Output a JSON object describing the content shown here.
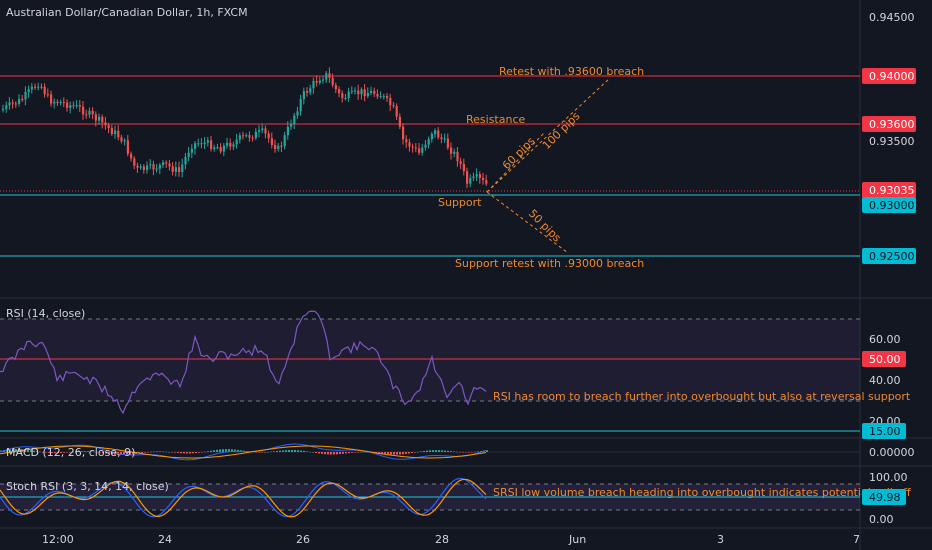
{
  "header": {
    "title": "Australian Dollar/Canadian Dollar, 1h, FXCM"
  },
  "colors": {
    "bg": "#131722",
    "up": "#26a69a",
    "down": "#ef5350",
    "resist": "#f23645",
    "support": "#22c5d6",
    "annotation": "#f0892f",
    "rsi": "#7e57c2",
    "stoch_k": "#2962ff",
    "stoch_d": "#ff9800"
  },
  "price_axis": {
    "ticks": [
      "0.94500",
      "0.93500"
    ],
    "tags": [
      {
        "label": "0.94000",
        "color": "#f23645"
      },
      {
        "label": "0.93600",
        "color": "#f23645"
      },
      {
        "label": "0.93035",
        "color": "#f23645"
      },
      {
        "label": "0.93000",
        "color": "#00bcd4"
      },
      {
        "label": "0.92500",
        "color": "#00bcd4"
      }
    ]
  },
  "annotations": {
    "retest": "Retest with .93600 breach",
    "resistance": "Resistance",
    "support": "Support",
    "support_retest": "Support retest with .93000 breach",
    "pips60": "60 pips",
    "pips100": "100 pips",
    "pips50": "50 pips"
  },
  "rsi": {
    "title": "RSI (14, close)",
    "ticks": [
      "60.00",
      "40.00",
      "20.00"
    ],
    "tag50": "50.00",
    "tag15": "15.00",
    "note": "RSI has room to breach further into overbought but also at reversal support"
  },
  "macd": {
    "title": "MACD (12, 26, close, 9)",
    "tick": "0.00000"
  },
  "stoch": {
    "title": "Stoch RSI (3, 3, 14, 14, close)",
    "ticks": [
      "100.00",
      "0.00"
    ],
    "tag": "49.98",
    "note": "SRSI low volume breach heading into overbought indicates potential sell off"
  },
  "time_axis": {
    "labels": [
      "12:00",
      "24",
      "26",
      "28",
      "Jun",
      "3",
      "7"
    ]
  }
}
